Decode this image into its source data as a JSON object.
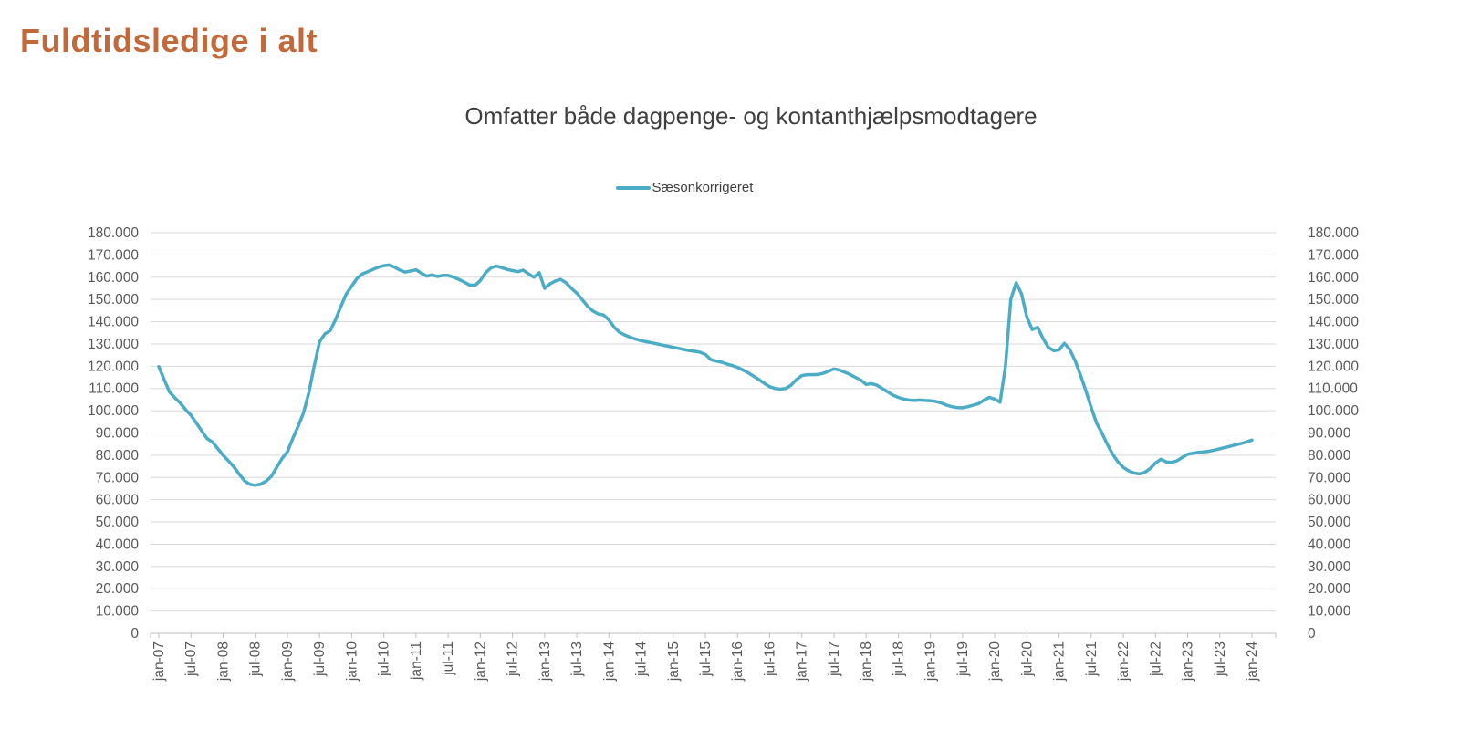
{
  "page": {
    "title": "Fuldtidsledige i alt"
  },
  "colors": {
    "title": "#C2693C",
    "subtitle": "#3F3F3F",
    "series_line": "#4BACC6",
    "axis_text": "#595959",
    "gridline": "#D9D9D9",
    "axis_line": "#BFBFBF"
  },
  "chart_data": {
    "type": "line",
    "title": "Omfatter både dagpenge- og kontanthjælpsmodtagere",
    "legend": {
      "position": "top",
      "entries": [
        "Sæsonkorrigeret"
      ]
    },
    "x_unit": "month",
    "x_start": "jan-07",
    "x_end": "jan-24",
    "x_tick_interval_months": 6,
    "x_tick_labels": [
      "jan-07",
      "jul-07",
      "jan-08",
      "jul-08",
      "jan-09",
      "jul-09",
      "jan-10",
      "jul-10",
      "jan-11",
      "jul-11",
      "jan-12",
      "jul-12",
      "jan-13",
      "jul-13",
      "jan-14",
      "jul-14",
      "jan-15",
      "jul-15",
      "jan-16",
      "jul-16",
      "jan-17",
      "jul-17",
      "jan-18",
      "jul-18",
      "jan-19",
      "jul-19",
      "jan-20",
      "jul-20",
      "jan-21",
      "jul-21",
      "jan-22",
      "jul-22",
      "jan-23",
      "jul-23",
      "jan-24"
    ],
    "ylim": [
      0,
      180000
    ],
    "y_tick_step": 10000,
    "y_tick_labels": [
      "0",
      "10.000",
      "20.000",
      "30.000",
      "40.000",
      "50.000",
      "60.000",
      "70.000",
      "80.000",
      "90.000",
      "100.000",
      "110.000",
      "120.000",
      "130.000",
      "140.000",
      "150.000",
      "160.000",
      "170.000",
      "180.000"
    ],
    "y_axis_sides": "both",
    "grid": "horizontal",
    "series": [
      {
        "name": "Sæsonkorrigeret",
        "color": "#4BACC6",
        "values": [
          119800,
          114000,
          108500,
          105800,
          103500,
          100500,
          98000,
          94500,
          91000,
          87500,
          86000,
          83000,
          80000,
          77500,
          74800,
          71500,
          68500,
          66900,
          66500,
          67000,
          68300,
          70500,
          74500,
          78500,
          81500,
          87500,
          93000,
          99000,
          108000,
          120000,
          131000,
          134500,
          136000,
          141000,
          147000,
          152500,
          156000,
          159500,
          161500,
          162500,
          163500,
          164500,
          165200,
          165500,
          164500,
          163200,
          162300,
          162800,
          163300,
          161800,
          160500,
          161000,
          160300,
          160800,
          160800,
          160000,
          159000,
          157800,
          156500,
          156300,
          158500,
          162000,
          164200,
          165000,
          164300,
          163500,
          163000,
          162500,
          163200,
          161500,
          160000,
          162000,
          155000,
          157000,
          158300,
          159000,
          157500,
          155000,
          152800,
          150000,
          147000,
          144800,
          143500,
          143000,
          140800,
          137500,
          135200,
          134000,
          133000,
          132200,
          131500,
          131000,
          130500,
          130000,
          129500,
          129000,
          128500,
          128000,
          127500,
          127000,
          126700,
          126300,
          125300,
          123000,
          122300,
          121800,
          121000,
          120300,
          119500,
          118300,
          117000,
          115500,
          114000,
          112300,
          110800,
          110000,
          109700,
          110000,
          111500,
          114000,
          115800,
          116200,
          116200,
          116300,
          116800,
          117800,
          118800,
          118300,
          117300,
          116300,
          115000,
          113800,
          111800,
          112200,
          111500,
          110000,
          108500,
          107000,
          106000,
          105200,
          104800,
          104600,
          104800,
          104600,
          104500,
          104200,
          103500,
          102500,
          101800,
          101400,
          101300,
          101800,
          102500,
          103200,
          104800,
          106000,
          105200,
          103800,
          120000,
          150000,
          157500,
          152500,
          142000,
          136500,
          137500,
          132500,
          128500,
          127000,
          127300,
          130300,
          127500,
          122500,
          116000,
          109000,
          101500,
          94500,
          90000,
          85000,
          80500,
          77000,
          74500,
          73000,
          72000,
          71600,
          72300,
          74000,
          76500,
          78200,
          77000,
          76800,
          77500,
          79000,
          80400,
          80900,
          81300,
          81500,
          81800,
          82300,
          82900,
          83500,
          84100,
          84700,
          85300,
          86000,
          86800
        ]
      }
    ]
  }
}
